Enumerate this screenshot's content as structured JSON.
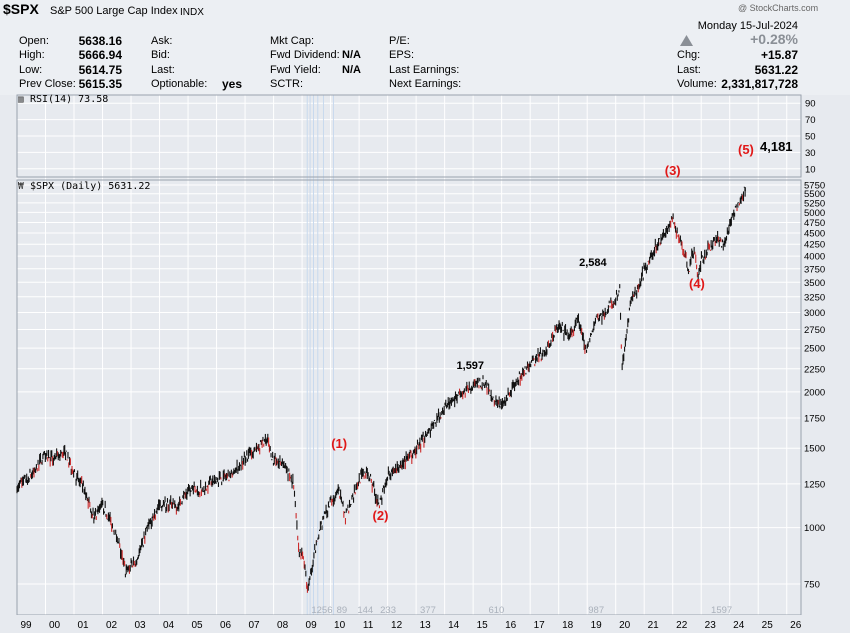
{
  "header": {
    "symbol": "$SPX",
    "name": "S&P 500 Large Cap Index",
    "exchange": "INDX",
    "watermark": "@ StockCharts.com",
    "date": "Monday  15-Jul-2024",
    "change_pct": "+0.28%",
    "fields": {
      "open": {
        "label": "Open:",
        "value": "5638.16"
      },
      "high": {
        "label": "High:",
        "value": "5666.94"
      },
      "low": {
        "label": "Low:",
        "value": "5614.75"
      },
      "prev_close": {
        "label": "Prev Close:",
        "value": "5615.35"
      },
      "ask": {
        "label": "Ask:",
        "value": ""
      },
      "bid": {
        "label": "Bid:",
        "value": ""
      },
      "last": {
        "label": "Last:",
        "value": ""
      },
      "optionable": {
        "label": "Optionable:",
        "value": "yes"
      },
      "mkt_cap": {
        "label": "Mkt Cap:",
        "value": ""
      },
      "fwd_dividend": {
        "label": "Fwd Dividend:",
        "value": "N/A"
      },
      "fwd_yield": {
        "label": "Fwd Yield:",
        "value": "N/A"
      },
      "sctr": {
        "label": "SCTR:",
        "value": ""
      },
      "pe": {
        "label": "P/E:",
        "value": ""
      },
      "eps": {
        "label": "EPS:",
        "value": ""
      },
      "last_earnings": {
        "label": "Last Earnings:",
        "value": ""
      },
      "next_earnings": {
        "label": "Next Earnings:",
        "value": ""
      },
      "chg": {
        "label": "Chg:",
        "value": "+15.87"
      },
      "last_price": {
        "label": "Last:",
        "value": "5631.22"
      },
      "volume": {
        "label": "Volume:",
        "value": "2,331,817,728"
      }
    }
  },
  "colors": {
    "price": "#111111",
    "down": "#cc2a2a",
    "wave_label": "#e01818",
    "grid": "#ffffff",
    "plot_bg": "#e7eaef",
    "bar_count": "#aab1bb"
  },
  "chart_data": [
    {
      "type": "line",
      "title": "RSI(14) 73.58",
      "y_ticks": [
        90,
        70,
        50,
        30,
        10
      ],
      "ylim": [
        0,
        100
      ],
      "annotations": [
        {
          "text": "(5)",
          "role": "wave"
        },
        {
          "text": "4,181",
          "role": "value"
        }
      ]
    },
    {
      "type": "line",
      "title": "$SPX (Daily) 5631.22",
      "y_scale": "log",
      "ylim": [
        640,
        5900
      ],
      "y_ticks": [
        5750,
        5500,
        5250,
        5000,
        4750,
        4500,
        4250,
        4000,
        3750,
        3500,
        3250,
        3000,
        2750,
        2500,
        2250,
        2000,
        1750,
        1500,
        1250,
        1000,
        750
      ],
      "x_ticks": [
        "99",
        "00",
        "01",
        "02",
        "03",
        "04",
        "05",
        "06",
        "07",
        "08",
        "09",
        "10",
        "11",
        "12",
        "13",
        "14",
        "15",
        "16",
        "17",
        "18",
        "19",
        "20",
        "21",
        "22",
        "23",
        "24",
        "25",
        "26"
      ],
      "series": [
        {
          "x": [
            1999.0,
            1999.6,
            2000.0,
            2000.2,
            2000.7,
            2001.0,
            2001.3,
            2001.7,
            2002.0,
            2002.5,
            2002.8,
            2003.2,
            2003.6,
            2004.0,
            2004.6,
            2005.0,
            2005.5,
            2006.0,
            2006.5,
            2007.0,
            2007.4,
            2007.8,
            2008.0,
            2008.4,
            2008.7,
            2008.9,
            2009.0,
            2009.2,
            2009.5,
            2009.8,
            2010.0,
            2010.3,
            2010.5,
            2010.8,
            2011.0,
            2011.3,
            2011.7,
            2012.0,
            2012.5,
            2013.0,
            2013.5,
            2014.0,
            2014.5,
            2015.0,
            2015.4,
            2015.7,
            2016.1,
            2016.5,
            2017.0,
            2017.5,
            2018.0,
            2018.4,
            2018.7,
            2018.98,
            2019.3,
            2019.6,
            2020.0,
            2020.15,
            2020.22,
            2020.5,
            2020.8,
            2021.0,
            2021.5,
            2022.0,
            2022.4,
            2022.55,
            2022.75,
            2022.9,
            2023.0,
            2023.5,
            2023.8,
            2024.0,
            2024.3,
            2024.54
          ],
          "y": [
            1230,
            1330,
            1460,
            1420,
            1470,
            1320,
            1230,
            1060,
            1130,
            960,
            800,
            850,
            1000,
            1130,
            1120,
            1200,
            1220,
            1280,
            1300,
            1430,
            1500,
            1550,
            1400,
            1380,
            1250,
            850,
            900,
            720,
            920,
            1070,
            1140,
            1200,
            1050,
            1180,
            1280,
            1340,
            1120,
            1300,
            1380,
            1480,
            1650,
            1840,
            1960,
            2050,
            2110,
            1920,
            1880,
            2120,
            2300,
            2450,
            2790,
            2650,
            2900,
            2450,
            2900,
            2980,
            3230,
            3380,
            2240,
            3100,
            3400,
            3720,
            4300,
            4780,
            4100,
            3700,
            4150,
            3600,
            3900,
            4400,
            4200,
            4750,
            5200,
            5631
          ]
        }
      ],
      "bar_counts": [
        "1256",
        "89",
        "144",
        "233",
        "377",
        "610",
        "987",
        "1597"
      ],
      "annotations": [
        {
          "text": "(1)",
          "role": "wave",
          "x": 2010.3,
          "y": 1500
        },
        {
          "text": "(2)",
          "role": "wave",
          "x": 2011.75,
          "y": 1040
        },
        {
          "text": "1,597",
          "role": "value",
          "x": 2014.9,
          "y": 2250
        },
        {
          "text": "2,584",
          "role": "value",
          "x": 2019.2,
          "y": 3800
        },
        {
          "text": "(3)",
          "role": "wave",
          "x": 2022.0,
          "y": 6050
        },
        {
          "text": "(4)",
          "role": "wave",
          "x": 2022.85,
          "y": 3400
        }
      ]
    }
  ]
}
